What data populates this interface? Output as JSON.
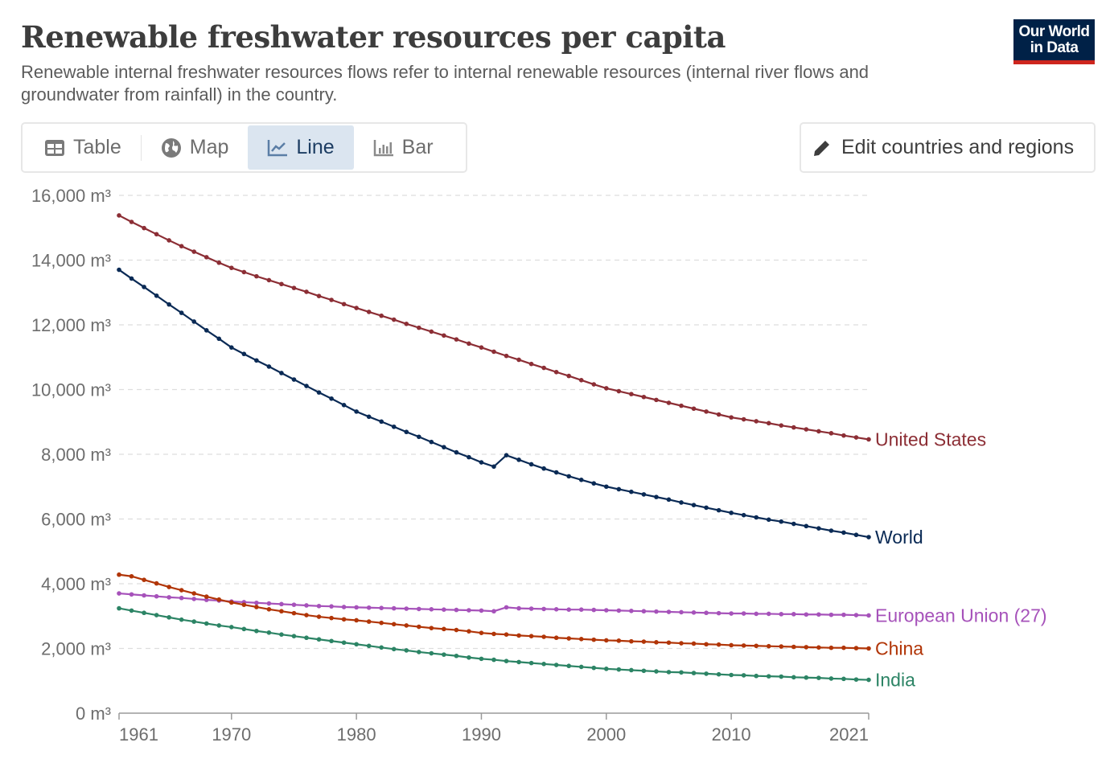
{
  "header": {
    "title": "Renewable freshwater resources per capita",
    "subtitle": "Renewable internal freshwater resources flows refer to internal renewable resources (internal river flows and groundwater from rainfall) in the country.",
    "logo_line1": "Our World",
    "logo_line2": "in Data"
  },
  "tabs": [
    {
      "label": "Table",
      "icon": "table-icon"
    },
    {
      "label": "Map",
      "icon": "globe-icon"
    },
    {
      "label": "Line",
      "icon": "line-chart-icon",
      "active": true
    },
    {
      "label": "Bar",
      "icon": "bar-chart-icon"
    }
  ],
  "edit_button": {
    "label": "Edit countries and regions",
    "icon": "pencil-icon"
  },
  "chart_data": {
    "type": "line",
    "title": "Renewable freshwater resources per capita",
    "xlabel": "",
    "ylabel": "",
    "ylim": [
      0,
      16000
    ],
    "xlim": [
      1961,
      2021
    ],
    "y_ticks": [
      0,
      2000,
      4000,
      6000,
      8000,
      10000,
      12000,
      14000,
      16000
    ],
    "y_tick_labels": [
      "0 m³",
      "2,000 m³",
      "4,000 m³",
      "6,000 m³",
      "8,000 m³",
      "10,000 m³",
      "12,000 m³",
      "14,000 m³",
      "16,000 m³"
    ],
    "x_ticks": [
      1961,
      1970,
      1980,
      1990,
      2000,
      2010,
      2021
    ],
    "x_tick_labels": [
      "1961",
      "1970",
      "1980",
      "1990",
      "2000",
      "2010",
      "2021"
    ],
    "grid": "horizontal dashed",
    "legend": "right-end line labels",
    "start_year": 1961,
    "series": [
      {
        "name": "United States",
        "color": "#8c2e35",
        "values": [
          15380,
          15180,
          14990,
          14800,
          14610,
          14430,
          14260,
          14090,
          13920,
          13760,
          13630,
          13500,
          13380,
          13260,
          13140,
          13020,
          12890,
          12770,
          12640,
          12520,
          12400,
          12280,
          12160,
          12030,
          11910,
          11790,
          11670,
          11550,
          11420,
          11300,
          11170,
          11040,
          10920,
          10790,
          10670,
          10540,
          10420,
          10290,
          10160,
          10040,
          9950,
          9860,
          9770,
          9680,
          9590,
          9500,
          9410,
          9320,
          9230,
          9140,
          9080,
          9020,
          8960,
          8890,
          8830,
          8770,
          8710,
          8650,
          8580,
          8520,
          8460
        ]
      },
      {
        "name": "World",
        "color": "#0a2a55",
        "values": [
          13700,
          13430,
          13170,
          12900,
          12630,
          12370,
          12100,
          11830,
          11570,
          11300,
          11100,
          10900,
          10710,
          10510,
          10310,
          10110,
          9910,
          9720,
          9520,
          9320,
          9160,
          9010,
          8850,
          8690,
          8540,
          8380,
          8220,
          8060,
          7910,
          7750,
          7620,
          7970,
          7830,
          7690,
          7560,
          7440,
          7320,
          7210,
          7100,
          7000,
          6920,
          6840,
          6760,
          6680,
          6600,
          6510,
          6430,
          6350,
          6270,
          6190,
          6120,
          6050,
          5980,
          5920,
          5850,
          5780,
          5710,
          5640,
          5580,
          5510,
          5440
        ]
      },
      {
        "name": "European Union (27)",
        "color": "#a652ba",
        "values": [
          3700,
          3670,
          3640,
          3610,
          3580,
          3560,
          3530,
          3500,
          3480,
          3450,
          3430,
          3410,
          3390,
          3370,
          3350,
          3330,
          3310,
          3300,
          3280,
          3270,
          3260,
          3250,
          3240,
          3230,
          3220,
          3210,
          3200,
          3190,
          3180,
          3170,
          3150,
          3270,
          3240,
          3230,
          3220,
          3210,
          3200,
          3200,
          3190,
          3180,
          3170,
          3160,
          3150,
          3140,
          3130,
          3120,
          3110,
          3100,
          3090,
          3080,
          3080,
          3070,
          3070,
          3060,
          3060,
          3050,
          3050,
          3040,
          3040,
          3030,
          3020
        ]
      },
      {
        "name": "China",
        "color": "#b13507",
        "values": [
          4280,
          4230,
          4120,
          4010,
          3900,
          3800,
          3700,
          3600,
          3510,
          3420,
          3350,
          3280,
          3210,
          3150,
          3090,
          3030,
          2980,
          2940,
          2900,
          2870,
          2830,
          2790,
          2750,
          2710,
          2670,
          2630,
          2600,
          2570,
          2530,
          2480,
          2450,
          2430,
          2400,
          2380,
          2360,
          2330,
          2310,
          2290,
          2270,
          2250,
          2240,
          2220,
          2210,
          2190,
          2180,
          2160,
          2150,
          2130,
          2120,
          2100,
          2090,
          2080,
          2070,
          2060,
          2050,
          2040,
          2030,
          2020,
          2020,
          2010,
          2000
        ]
      },
      {
        "name": "India",
        "color": "#2c8465",
        "values": [
          3240,
          3170,
          3100,
          3030,
          2960,
          2890,
          2830,
          2770,
          2710,
          2660,
          2600,
          2540,
          2490,
          2430,
          2380,
          2330,
          2280,
          2230,
          2180,
          2130,
          2080,
          2030,
          1980,
          1940,
          1890,
          1850,
          1810,
          1770,
          1720,
          1680,
          1650,
          1610,
          1580,
          1550,
          1520,
          1490,
          1460,
          1430,
          1400,
          1370,
          1350,
          1330,
          1310,
          1290,
          1270,
          1260,
          1240,
          1220,
          1200,
          1180,
          1170,
          1150,
          1140,
          1130,
          1110,
          1100,
          1090,
          1070,
          1060,
          1040,
          1030
        ]
      }
    ]
  }
}
